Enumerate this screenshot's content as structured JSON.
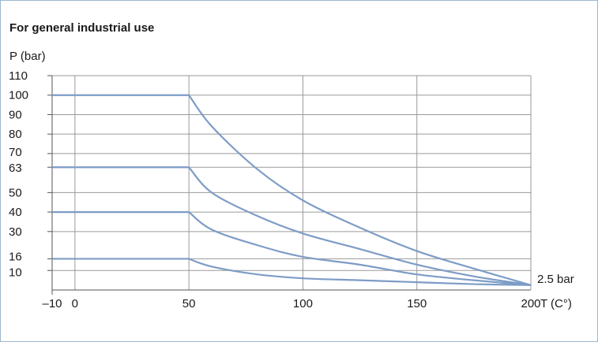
{
  "chart_data": {
    "type": "line",
    "title": "For general industrial use",
    "ylabel": "P (bar)",
    "xlabel": "T (C°)",
    "xlim": [
      -10,
      200
    ],
    "ylim": [
      0,
      110
    ],
    "x_ticks": [
      -10,
      0,
      50,
      100,
      150,
      200
    ],
    "x_tick_labels": [
      "–10",
      "0",
      "50",
      "100",
      "150",
      "200"
    ],
    "y_ticks": [
      10,
      16,
      30,
      40,
      50,
      63,
      70,
      80,
      90,
      100,
      110
    ],
    "y_tick_labels": [
      "10",
      "16",
      "30",
      "40",
      "50",
      "63",
      "70",
      "80",
      "90",
      "100",
      "110"
    ],
    "grid": true,
    "line_color": "#7d9cc6",
    "annotation": "2.5 bar",
    "series": [
      {
        "x": [
          -10,
          0,
          50,
          60,
          80,
          100,
          125,
          150,
          175,
          200
        ],
        "y": [
          100,
          100,
          100,
          84,
          62,
          46,
          32,
          20,
          11,
          2.5
        ]
      },
      {
        "x": [
          -10,
          0,
          50,
          60,
          80,
          100,
          125,
          150,
          175,
          200
        ],
        "y": [
          63,
          63,
          63,
          50,
          38,
          29,
          21,
          13,
          7,
          2.5
        ]
      },
      {
        "x": [
          -10,
          0,
          50,
          60,
          80,
          100,
          125,
          150,
          175,
          200
        ],
        "y": [
          40,
          40,
          40,
          31,
          23,
          17,
          13,
          8,
          5,
          2.5
        ]
      },
      {
        "x": [
          -10,
          0,
          50,
          60,
          80,
          100,
          125,
          150,
          175,
          200
        ],
        "y": [
          16,
          16,
          16,
          12,
          8,
          6,
          5,
          4,
          3,
          2.5
        ]
      }
    ]
  }
}
